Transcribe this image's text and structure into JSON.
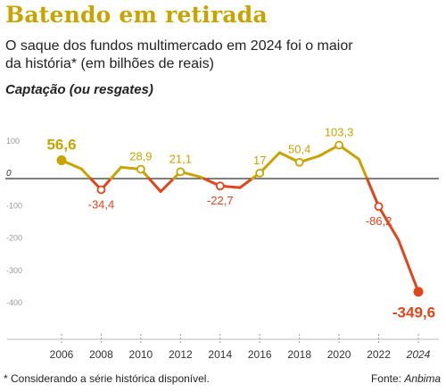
{
  "title": "Batendo em retirada",
  "subtitle": "O saque dos fundos multimercado em 2024 foi o maior da história*  (em bilhões de reais)",
  "series_label": "Captação (ou resgates)",
  "footnote": "* Considerando a série histórica disponível.",
  "source_prefix": "Fonte: ",
  "source_name": "Anbima",
  "colors": {
    "positive": "#c9a300",
    "negative": "#e2441b",
    "axis_text": "#999999",
    "zero_line": "#333333"
  },
  "chart_data": {
    "type": "line",
    "title": "",
    "xlabel": "",
    "ylabel": "",
    "ylim": [
      -400,
      100
    ],
    "yticks": [
      100,
      0,
      -100,
      -200,
      -300,
      -400
    ],
    "ytick_labels": [
      "100",
      "0",
      "-100",
      "-200",
      "-300",
      "-400"
    ],
    "xticks": [
      2006,
      2008,
      2010,
      2012,
      2014,
      2016,
      2018,
      2020,
      2022,
      2024
    ],
    "grid": false,
    "x": [
      2006,
      2007,
      2008,
      2009,
      2010,
      2011,
      2012,
      2013,
      2014,
      2015,
      2016,
      2017,
      2018,
      2019,
      2020,
      2021,
      2022,
      2023,
      2024
    ],
    "values": [
      56.6,
      30,
      -34.4,
      35,
      28.9,
      -40,
      21.1,
      5,
      -22.7,
      -28,
      17,
      80,
      50.4,
      70,
      103.3,
      60,
      -86.2,
      -190,
      -349.6
    ],
    "labeled_points": [
      {
        "x": 2006,
        "label": "56,6"
      },
      {
        "x": 2008,
        "label": "-34,4"
      },
      {
        "x": 2010,
        "label": "28,9"
      },
      {
        "x": 2012,
        "label": "21,1"
      },
      {
        "x": 2014,
        "label": "-22,7"
      },
      {
        "x": 2016,
        "label": "17"
      },
      {
        "x": 2018,
        "label": "50,4"
      },
      {
        "x": 2020,
        "label": "103,3"
      },
      {
        "x": 2022,
        "label": "-86,2"
      },
      {
        "x": 2024,
        "label": "-349,6"
      }
    ]
  }
}
